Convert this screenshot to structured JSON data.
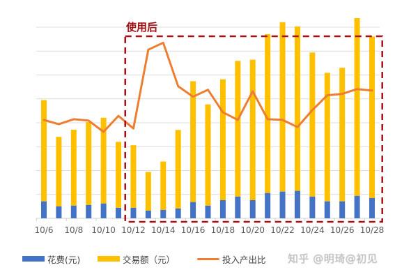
{
  "chart_data": {
    "type": "bar+line",
    "title": "",
    "annotation": "使用后",
    "annotation_box": {
      "start_category": "10/12",
      "end_category": "10/28",
      "color": "#a50f15",
      "style": "dashed"
    },
    "categories": [
      "10/6",
      "10/7",
      "10/8",
      "10/9",
      "10/10",
      "10/11",
      "10/12",
      "10/13",
      "10/14",
      "10/15",
      "10/16",
      "10/17",
      "10/18",
      "10/19",
      "10/20",
      "10/21",
      "10/22",
      "10/23",
      "10/24",
      "10/25",
      "10/26",
      "10/27",
      "10/28"
    ],
    "tick_labels": [
      "10/6",
      "10/8",
      "10/10",
      "10/12",
      "10/14",
      "10/16",
      "10/18",
      "10/20",
      "10/22",
      "10/24",
      "10/26",
      "10/28"
    ],
    "xlabel": "",
    "ylabel": "",
    "y_axis_visible": false,
    "grid": true,
    "gridline_count": 8,
    "stacked": true,
    "series": [
      {
        "name": "花费(元)",
        "type": "bar",
        "color": "#4472c4",
        "values": [
          0.71,
          0.5,
          0.53,
          0.56,
          0.62,
          0.44,
          0.44,
          0.32,
          0.35,
          0.41,
          0.68,
          0.53,
          0.76,
          0.91,
          0.76,
          1.06,
          1.12,
          1.15,
          0.91,
          0.71,
          0.71,
          0.94,
          0.85
        ]
      },
      {
        "name": "交易额（元）",
        "type": "bar",
        "color": "#ffc000",
        "values": [
          4.24,
          2.91,
          3.18,
          3.47,
          3.59,
          2.76,
          2.62,
          1.62,
          2.03,
          3.29,
          5.06,
          4.24,
          5.06,
          5.68,
          5.88,
          6.65,
          7.09,
          6.88,
          6.03,
          5.38,
          5.59,
          7.44,
          6.76
        ]
      },
      {
        "name": "投入产出比",
        "type": "line",
        "color": "#ed7d31",
        "values": [
          4.12,
          3.94,
          4.15,
          4.09,
          3.62,
          4.29,
          3.76,
          7.06,
          7.35,
          5.53,
          5.09,
          5.38,
          4.44,
          4.12,
          5.32,
          4.15,
          4.12,
          3.82,
          4.53,
          5.15,
          5.21,
          5.41,
          5.35
        ]
      }
    ],
    "ylim": [
      0,
      8
    ],
    "legend_position": "bottom"
  },
  "legend": {
    "items": [
      {
        "label": "花费(元)",
        "color": "#4472c4",
        "kind": "bar"
      },
      {
        "label": "交易额（元）",
        "color": "#ffc000",
        "kind": "bar"
      },
      {
        "label": "投入产出比",
        "color": "#ed7d31",
        "kind": "line"
      }
    ]
  },
  "watermark": "知乎 @明琦@初见"
}
